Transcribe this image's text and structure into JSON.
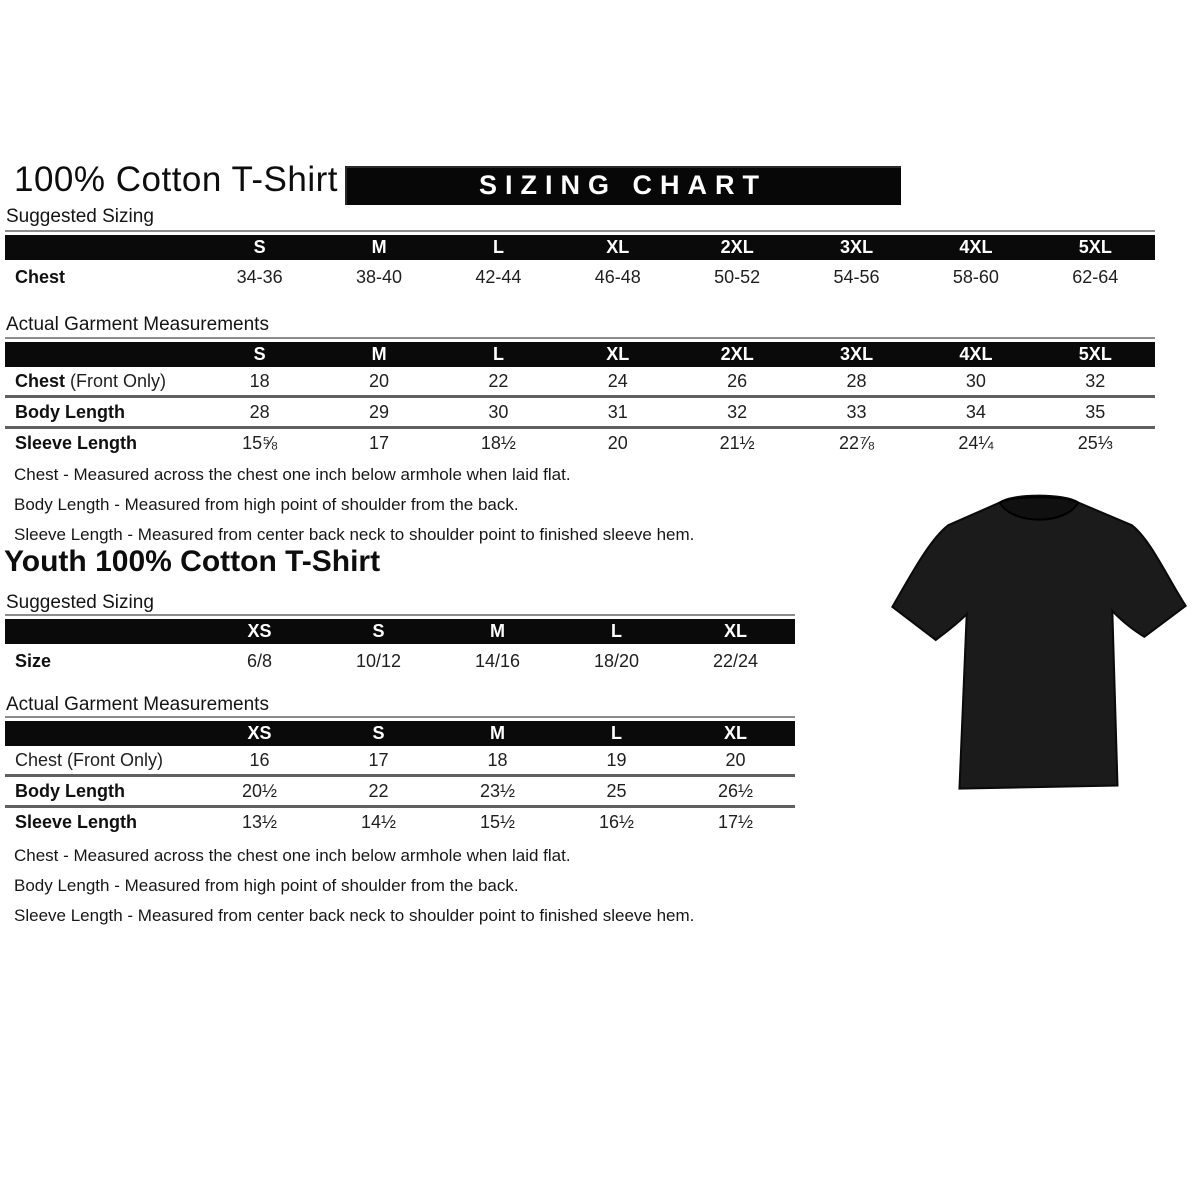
{
  "title": "100% Cotton T-Shirt",
  "banner": "SIZING CHART",
  "youth_title": "Youth 100% Cotton T-Shirt",
  "adult_suggested": {
    "section_label": "Suggested Sizing",
    "columns": [
      "S",
      "M",
      "L",
      "XL",
      "2XL",
      "3XL",
      "4XL",
      "5XL"
    ],
    "rows": [
      {
        "label_bold": "Chest",
        "label_rest": "",
        "values": [
          "34-36",
          "38-40",
          "42-44",
          "46-48",
          "50-52",
          "54-56",
          "58-60",
          "62-64"
        ]
      }
    ]
  },
  "adult_measurements": {
    "section_label": "Actual Garment Measurements",
    "columns": [
      "S",
      "M",
      "L",
      "XL",
      "2XL",
      "3XL",
      "4XL",
      "5XL"
    ],
    "rows": [
      {
        "label_bold": "Chest",
        "label_rest": " (Front Only)",
        "values": [
          "18",
          "20",
          "22",
          "24",
          "26",
          "28",
          "30",
          "32"
        ]
      },
      {
        "label_bold": "Body Length",
        "label_rest": "",
        "values": [
          "28",
          "29",
          "30",
          "31",
          "32",
          "33",
          "34",
          "35"
        ]
      },
      {
        "label_bold": "Sleeve Length",
        "label_rest": "",
        "values": [
          "15⅝",
          "17",
          "18½",
          "20",
          "21½",
          "22⅞",
          "24¼",
          "25⅓"
        ]
      }
    ]
  },
  "adult_notes": [
    "Chest - Measured across the chest one inch below armhole when laid flat.",
    "Body Length - Measured from high point of shoulder from the back.",
    "Sleeve Length - Measured from center back neck to shoulder point to finished sleeve hem."
  ],
  "youth_suggested": {
    "section_label": "Suggested Sizing",
    "columns": [
      "XS",
      "S",
      "M",
      "L",
      "XL"
    ],
    "rows": [
      {
        "label_bold": "Size",
        "label_rest": "",
        "values": [
          "6/8",
          "10/12",
          "14/16",
          "18/20",
          "22/24"
        ]
      }
    ]
  },
  "youth_measurements": {
    "section_label": "Actual Garment Measurements",
    "columns": [
      "XS",
      "S",
      "M",
      "L",
      "XL"
    ],
    "rows": [
      {
        "label_bold": "",
        "label_rest": "Chest (Front Only)",
        "values": [
          "16",
          "17",
          "18",
          "19",
          "20"
        ]
      },
      {
        "label_bold": "Body Length",
        "label_rest": "",
        "values": [
          "20½",
          "22",
          "23½",
          "25",
          "26½"
        ]
      },
      {
        "label_bold": "Sleeve Length",
        "label_rest": "",
        "values": [
          "13½",
          "14½",
          "15½",
          "16½",
          "17½"
        ]
      }
    ]
  },
  "youth_notes": [
    "Chest - Measured across the chest one inch below armhole when laid flat.",
    "Body Length - Measured from high point of shoulder from the back.",
    "Sleeve Length - Measured from center back neck to shoulder point to finished sleeve hem."
  ],
  "tshirt": {
    "name": "black t-shirt product photo",
    "color": "#1b1b1b"
  }
}
